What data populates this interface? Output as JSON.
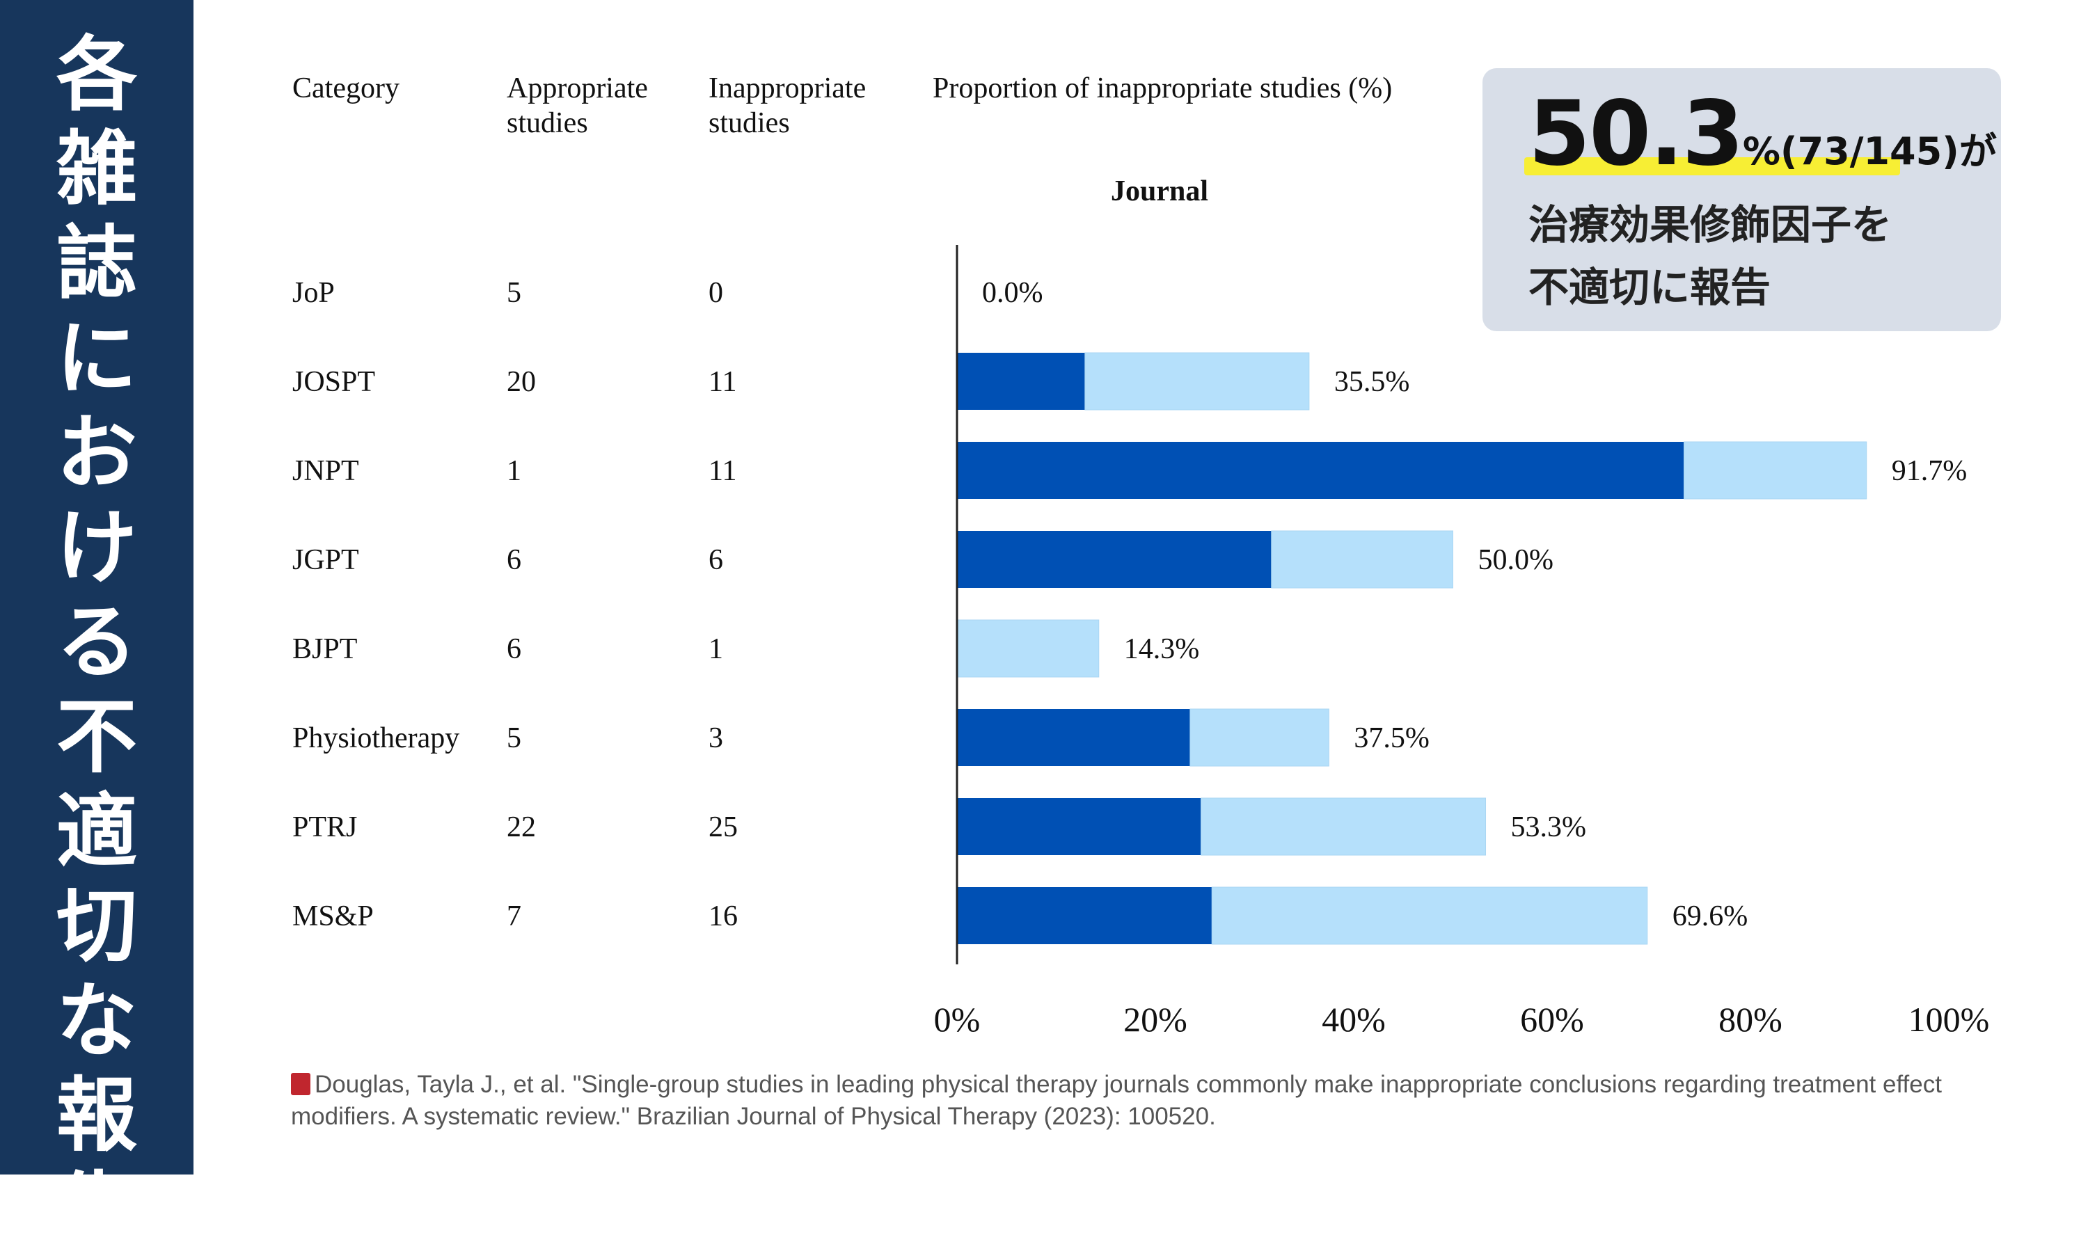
{
  "sidebar": {
    "title_chars": [
      "各",
      "雑",
      "誌",
      "に",
      "お",
      "け",
      "る",
      "不",
      "適",
      "切",
      "な",
      "報",
      "告"
    ]
  },
  "chart_data": {
    "type": "bar",
    "orientation": "horizontal",
    "stacked": true,
    "title": "Journal",
    "table_headers": {
      "category": "Category",
      "appropriate": [
        "Appropriate",
        "studies"
      ],
      "inappropriate": [
        "Inappropriate",
        "studies"
      ],
      "proportion": "Proportion of inappropriate studies (%)"
    },
    "categories": [
      "JoP",
      "JOSPT",
      "JNPT",
      "JGPT",
      "BJPT",
      "Physiotherapy",
      "PTRJ",
      "MS&P"
    ],
    "appropriate": [
      "5",
      "20",
      "1",
      "6",
      "6",
      "5",
      "22",
      "7"
    ],
    "inappropriate": [
      "0",
      "11",
      "11",
      "6",
      "1",
      "3",
      "25",
      "16"
    ],
    "series": [
      {
        "values": [
          0,
          12.9,
          73.3,
          31.7,
          0,
          23.5,
          24.6,
          25.7
        ]
      },
      {
        "values": [
          0,
          22.6,
          18.4,
          18.3,
          14.3,
          14.0,
          28.7,
          43.9
        ]
      }
    ],
    "data_labels": [
      "0.0%",
      "35.5%",
      "91.7%",
      "50.0%",
      "14.3%",
      "37.5%",
      "53.3%",
      "69.6%"
    ],
    "x_ticks": [
      "0%",
      "20%",
      "40%",
      "60%",
      "80%",
      "100%"
    ],
    "xlim": [
      0,
      100
    ],
    "grid": false,
    "colors": {
      "dark": "#0050b4",
      "light": "#b5e0fb",
      "axis": "#222222"
    }
  },
  "callout": {
    "big_number": "50.3",
    "count_text": "%(73/145)",
    "suffix": "が",
    "line1": "治療効果修飾因子を",
    "line2": "不適切に報告",
    "highlight_color": "#f7ee34",
    "background_color": "#d8dee8"
  },
  "citation": {
    "icon": "book-icon",
    "text": "Douglas, Tayla J., et al. \"Single-group studies in leading physical therapy journals commonly make inappropriate conclusions regarding treatment effect modifiers. A systematic review.\" Brazilian Journal of Physical Therapy (2023): 100520."
  }
}
